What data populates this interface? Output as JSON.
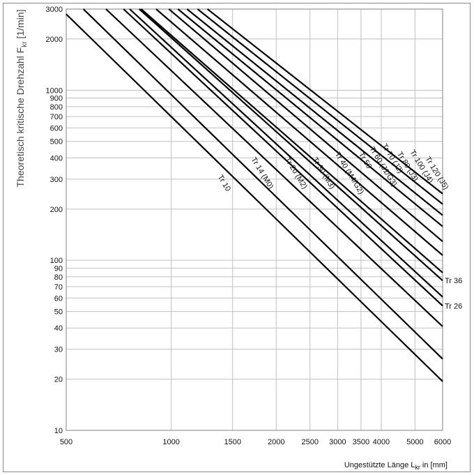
{
  "chart_data": {
    "type": "line",
    "xlabel_main": "Ungestützte Länge L",
    "xlabel_sub": "kr",
    "xlabel_unit": " in [mm]",
    "ylabel_main": "Theoretisch kritische Drehzahl F",
    "ylabel_sub": "kr",
    "ylabel_unit": " [1/min]",
    "x_scale": "log",
    "y_scale": "log",
    "xlim": [
      500,
      6000
    ],
    "ylim": [
      10,
      3000
    ],
    "x_ticks": [
      500,
      1000,
      1500,
      2000,
      2500,
      3000,
      3500,
      4000,
      5000,
      6000
    ],
    "x_tick_labels": [
      "500",
      "1000",
      "1500",
      "2000",
      "2500",
      "3000",
      "3500",
      "4000",
      "5000",
      "6000"
    ],
    "y_ticks": [
      10,
      20,
      30,
      40,
      50,
      60,
      70,
      80,
      90,
      100,
      200,
      300,
      400,
      500,
      600,
      700,
      800,
      900,
      1000,
      2000,
      3000
    ],
    "y_tick_labels": [
      "10",
      "20",
      "30",
      "40",
      "50",
      "60",
      "70",
      "80",
      "90",
      "100",
      "200",
      "300",
      "400",
      "500",
      "600",
      "700",
      "800",
      "900",
      "1000",
      "2000",
      "3000"
    ],
    "grid": true,
    "series": [
      {
        "name": "Tr 10",
        "x": [
          500,
          6000
        ],
        "y": [
          2800,
          19.4
        ]
      },
      {
        "name": "Tr 14 (M0)",
        "x": [
          560,
          6000
        ],
        "y": [
          3000,
          26.3
        ]
      },
      {
        "name": "Tr 20 (M2)",
        "x": [
          650,
          6000
        ],
        "y": [
          3000,
          40.8
        ]
      },
      {
        "name": "Tr 26",
        "x": [
          730,
          6000
        ],
        "y": [
          3000,
          54
        ]
      },
      {
        "name": "Tr 30 (M3)",
        "x": [
          760,
          6000
        ],
        "y": [
          3000,
          60.9
        ]
      },
      {
        "name": "Tr 36",
        "x": [
          810,
          6000
        ],
        "y": [
          3000,
          76
        ]
      },
      {
        "name": "Tr 40 (M4/G2)",
        "x": [
          820,
          6000
        ],
        "y": [
          3000,
          84.6
        ]
      },
      {
        "name": "Tr 50",
        "x": [
          905,
          6000
        ],
        "y": [
          3000,
          107
        ]
      },
      {
        "name": "Tr 60 (J1/G3)",
        "x": [
          985,
          6000
        ],
        "y": [
          3000,
          129
        ]
      },
      {
        "name": "Tr 70 (J2)",
        "x": [
          1045,
          6000
        ],
        "y": [
          3000,
          158
        ]
      },
      {
        "name": "Tr 80 (J3)",
        "x": [
          1110,
          6000
        ],
        "y": [
          3000,
          184
        ]
      },
      {
        "name": "Tr 100 (J4)",
        "x": [
          1190,
          6000
        ],
        "y": [
          3000,
          214
        ]
      },
      {
        "name": "Tr 120 (J5)",
        "x": [
          1270,
          6000
        ],
        "y": [
          3000,
          246
        ]
      }
    ],
    "inline_labels": [
      {
        "text": "Tr 10",
        "x": 1400,
        "y": 280
      },
      {
        "text": "Tr 14 (M0)",
        "x": 1800,
        "y": 320
      },
      {
        "text": "Tr 20 (M2)",
        "x": 2250,
        "y": 320
      },
      {
        "text": "Tr 30 (M3)",
        "x": 2700,
        "y": 320
      },
      {
        "text": "Tr 40 (M4/G2)",
        "x": 3200,
        "y": 320
      },
      {
        "text": "Tr 50",
        "x": 3550,
        "y": 380
      },
      {
        "text": "Tr 60 (J1/G3)",
        "x": 4000,
        "y": 350
      },
      {
        "text": "Tr 70 (J2)",
        "x": 4250,
        "y": 390
      },
      {
        "text": "Tr 80 (J3)",
        "x": 4700,
        "y": 350
      },
      {
        "text": "Tr 100 (J4)",
        "x": 5150,
        "y": 350
      },
      {
        "text": "Tr 120 (J5)",
        "x": 5700,
        "y": 320
      }
    ],
    "end_labels": [
      {
        "text": "Tr 36",
        "value": 76
      },
      {
        "text": "Tr 26",
        "value": 54
      }
    ],
    "colors": {
      "line": "#000000",
      "grid": "#c0c0c0",
      "axis_text": "#111111"
    }
  }
}
